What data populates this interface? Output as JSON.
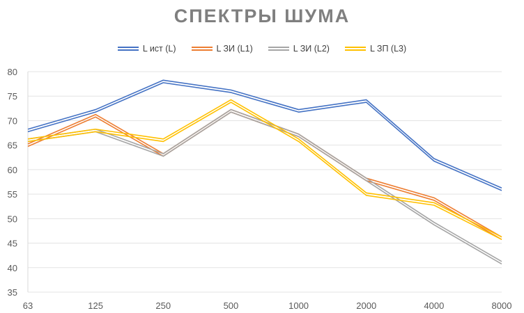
{
  "chart_data": {
    "type": "line",
    "title": "СПЕКТРЫ ШУМА",
    "xlabel": "",
    "ylabel": "",
    "categories": [
      "63",
      "125",
      "250",
      "500",
      "1000",
      "2000",
      "4000",
      "8000"
    ],
    "ylim": [
      35,
      80
    ],
    "yticks": [
      35,
      40,
      45,
      50,
      55,
      60,
      65,
      70,
      75,
      80
    ],
    "grid": true,
    "legend_position": "top",
    "series": [
      {
        "name": "L ист (L)",
        "color": "#4472c4",
        "values": [
          68,
          72,
          78,
          76,
          72,
          74,
          62,
          56
        ]
      },
      {
        "name": "L ЗИ (L1)",
        "color": "#ed7d31",
        "values": [
          65,
          71,
          63,
          72,
          67,
          58,
          54,
          46
        ]
      },
      {
        "name": "L ЗИ (L2)",
        "color": "#a5a5a5",
        "values": [
          66,
          68,
          63,
          72,
          67,
          58,
          49,
          41
        ]
      },
      {
        "name": "L ЗП (L3)",
        "color": "#ffc000",
        "values": [
          66,
          68,
          66,
          74,
          66,
          55,
          53,
          46
        ]
      }
    ]
  }
}
